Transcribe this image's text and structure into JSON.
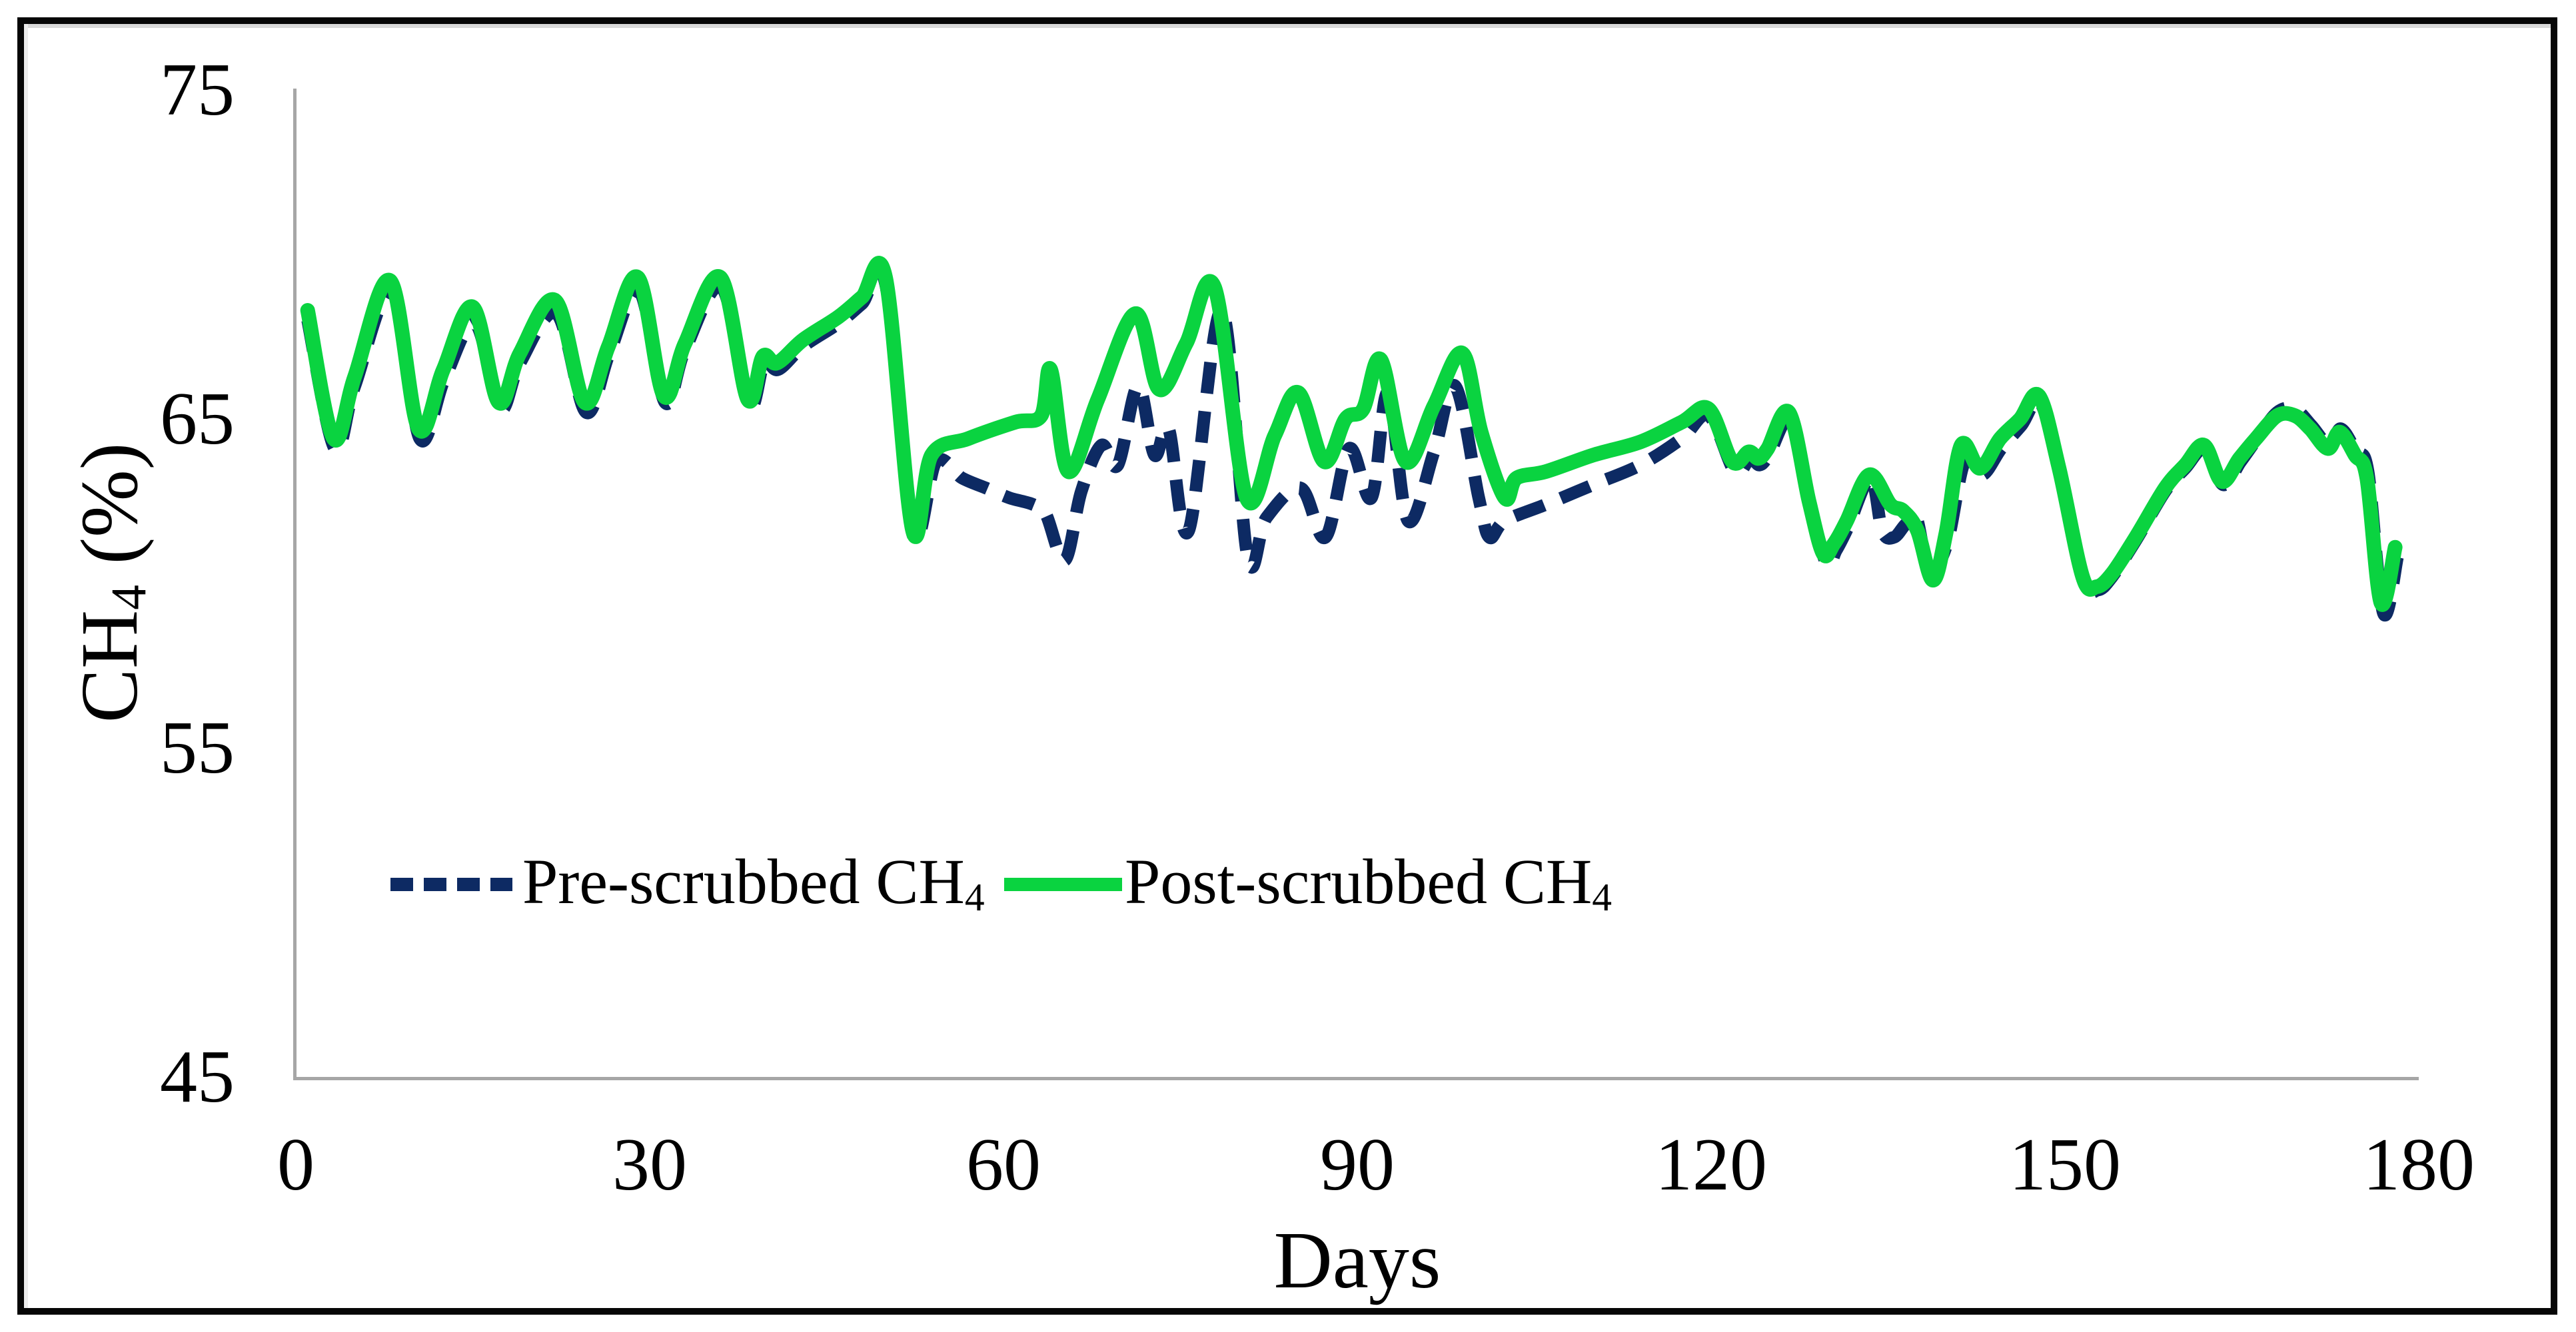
{
  "figure": {
    "background": "#ffffff",
    "border_color": "#060606",
    "axis_line_color": "#a6a6a6"
  },
  "chart_data": {
    "type": "line",
    "title": "",
    "xlabel": "Days",
    "ylabel": "CH4 (%)",
    "ylabel_parts": {
      "main": "CH",
      "sub": "4",
      "rest": " (%)"
    },
    "xlim": [
      0,
      180
    ],
    "ylim": [
      45,
      75
    ],
    "x_ticks": [
      0,
      30,
      60,
      90,
      120,
      150,
      180
    ],
    "y_ticks": [
      75,
      65,
      55,
      45
    ],
    "grid": false,
    "legend_position": "middle-left",
    "series": [
      {
        "name": "Pre-scrubbed CH4",
        "label_main": "Pre-scrubbed CH",
        "label_sub": "4",
        "color": "#0d2a63",
        "style": "dashed",
        "points": [
          [
            1,
            68.0
          ],
          [
            3.3,
            64.1
          ],
          [
            5,
            66.0
          ],
          [
            8.2,
            68.9
          ],
          [
            10.5,
            64.4
          ],
          [
            12.6,
            66.2
          ],
          [
            15.2,
            67.9
          ],
          [
            17.3,
            65.3
          ],
          [
            19,
            66.7
          ],
          [
            22.1,
            68.2
          ],
          [
            24.6,
            65.2
          ],
          [
            26.6,
            67.0
          ],
          [
            29.1,
            68.9
          ],
          [
            31.3,
            65.5
          ],
          [
            33,
            67.1
          ],
          [
            36.1,
            69.0
          ],
          [
            38.4,
            65.4
          ],
          [
            39.7,
            66.7
          ],
          [
            40.9,
            66.5
          ],
          [
            43,
            67.2
          ],
          [
            46,
            67.9
          ],
          [
            48,
            68.5
          ],
          [
            50,
            69.1
          ],
          [
            52.3,
            61.5
          ],
          [
            54.3,
            63.7
          ],
          [
            56.5,
            63.2
          ],
          [
            58.5,
            62.9
          ],
          [
            60.5,
            62.6
          ],
          [
            62.5,
            62.4
          ],
          [
            63.6,
            62.1
          ],
          [
            65.2,
            60.7
          ],
          [
            66.6,
            62.8
          ],
          [
            68.3,
            64.2
          ],
          [
            69.7,
            63.6
          ],
          [
            71.4,
            66.0
          ],
          [
            72.8,
            63.9
          ],
          [
            74,
            64.7
          ],
          [
            75.7,
            61.6
          ],
          [
            78.5,
            68.3
          ],
          [
            80.7,
            60.8
          ],
          [
            82.3,
            62.0
          ],
          [
            85.2,
            62.9
          ],
          [
            87.3,
            61.4
          ],
          [
            89.3,
            64.1
          ],
          [
            91.2,
            62.6
          ],
          [
            92.6,
            65.8
          ],
          [
            94.3,
            61.9
          ],
          [
            96.5,
            64.0
          ],
          [
            98.3,
            66.0
          ],
          [
            100.3,
            62.6
          ],
          [
            101.2,
            61.4
          ],
          [
            102.5,
            61.9
          ],
          [
            106,
            62.4
          ],
          [
            110,
            63.0
          ],
          [
            114,
            63.6
          ],
          [
            117.5,
            64.4
          ],
          [
            119.8,
            65.1
          ],
          [
            122.0,
            63.4
          ],
          [
            123.3,
            63.8
          ],
          [
            124.1,
            63.6
          ],
          [
            124.9,
            63.9
          ],
          [
            126.8,
            65.0
          ],
          [
            128.4,
            62.3
          ],
          [
            129.8,
            60.6
          ],
          [
            130.6,
            61.0
          ],
          [
            131.6,
            61.7
          ],
          [
            133.5,
            63.2
          ],
          [
            134.5,
            61.6
          ],
          [
            135.5,
            61.4
          ],
          [
            136.5,
            61.8
          ],
          [
            137.4,
            62.0
          ],
          [
            138.5,
            60.4
          ],
          [
            140,
            61.2
          ],
          [
            141.5,
            63.7
          ],
          [
            143,
            63.3
          ],
          [
            144.6,
            64.1
          ],
          [
            146.3,
            64.8
          ],
          [
            147.9,
            65.5
          ],
          [
            149.6,
            63.3
          ],
          [
            151.6,
            60.1
          ],
          [
            152.8,
            59.8
          ],
          [
            154,
            60.2
          ],
          [
            156,
            61.3
          ],
          [
            158.5,
            62.8
          ],
          [
            160.2,
            63.5
          ],
          [
            161.9,
            64.1
          ],
          [
            163.4,
            63.0
          ],
          [
            164.9,
            63.7
          ],
          [
            166.3,
            64.4
          ],
          [
            168,
            65.2
          ],
          [
            169.5,
            65.3
          ],
          [
            170.9,
            64.8
          ],
          [
            172.4,
            64.2
          ],
          [
            173.4,
            64.7
          ],
          [
            174.7,
            64.0
          ],
          [
            175.7,
            63.4
          ],
          [
            177,
            59.1
          ],
          [
            178.2,
            60.8
          ]
        ]
      },
      {
        "name": "Post-scrubbed CH4",
        "label_main": "Post-scrubbed CH",
        "label_sub": "4",
        "color": "#0ad340",
        "style": "solid",
        "points": [
          [
            1,
            68.3
          ],
          [
            3.2,
            64.4
          ],
          [
            5,
            66.3
          ],
          [
            8,
            69.2
          ],
          [
            10.4,
            64.7
          ],
          [
            12.5,
            66.5
          ],
          [
            15,
            68.4
          ],
          [
            17.2,
            65.5
          ],
          [
            19,
            67.0
          ],
          [
            22,
            68.6
          ],
          [
            24.5,
            65.5
          ],
          [
            26.5,
            67.2
          ],
          [
            29,
            69.3
          ],
          [
            31.2,
            65.7
          ],
          [
            33,
            67.3
          ],
          [
            36,
            69.3
          ],
          [
            38.3,
            65.6
          ],
          [
            39.6,
            66.9
          ],
          [
            40.8,
            66.7
          ],
          [
            43,
            67.4
          ],
          [
            46,
            68.1
          ],
          [
            48,
            68.7
          ],
          [
            50,
            69.3
          ],
          [
            52.3,
            61.6
          ],
          [
            53.9,
            63.9
          ],
          [
            57,
            64.4
          ],
          [
            61,
            64.9
          ],
          [
            63.2,
            65.1
          ],
          [
            64,
            66.5
          ],
          [
            65.5,
            63.4
          ],
          [
            68,
            65.6
          ],
          [
            71.2,
            68.2
          ],
          [
            73.2,
            65.9
          ],
          [
            75.5,
            67.3
          ],
          [
            77.9,
            69.0
          ],
          [
            80.6,
            62.6
          ],
          [
            83,
            64.5
          ],
          [
            85,
            65.8
          ],
          [
            87.2,
            63.7
          ],
          [
            89,
            65.0
          ],
          [
            90.5,
            65.3
          ],
          [
            92,
            66.8
          ],
          [
            94.1,
            63.7
          ],
          [
            96.5,
            65.4
          ],
          [
            98.9,
            67.0
          ],
          [
            100.5,
            64.6
          ],
          [
            102.5,
            62.6
          ],
          [
            103.5,
            63.2
          ],
          [
            106,
            63.4
          ],
          [
            110,
            63.9
          ],
          [
            114,
            64.3
          ],
          [
            117.5,
            64.9
          ],
          [
            119.8,
            65.3
          ],
          [
            121.8,
            63.7
          ],
          [
            123.2,
            64.0
          ],
          [
            124.0,
            63.8
          ],
          [
            124.8,
            64.1
          ],
          [
            126.6,
            65.2
          ],
          [
            128.3,
            62.5
          ],
          [
            129.5,
            60.9
          ],
          [
            130.4,
            61.2
          ],
          [
            131.5,
            61.9
          ],
          [
            133.4,
            63.3
          ],
          [
            135.2,
            62.4
          ],
          [
            136.3,
            62.2
          ],
          [
            137.5,
            61.6
          ],
          [
            138.8,
            60.1
          ],
          [
            139.9,
            61.5
          ],
          [
            141.2,
            64.2
          ],
          [
            142.8,
            63.5
          ],
          [
            144.5,
            64.4
          ],
          [
            146.2,
            65.0
          ],
          [
            147.8,
            65.7
          ],
          [
            149.5,
            63.5
          ],
          [
            151.5,
            60.2
          ],
          [
            152.7,
            59.9
          ],
          [
            154,
            60.3
          ],
          [
            156,
            61.4
          ],
          [
            158.5,
            62.9
          ],
          [
            160.2,
            63.6
          ],
          [
            161.8,
            64.2
          ],
          [
            163.3,
            63.1
          ],
          [
            164.8,
            63.8
          ],
          [
            166.2,
            64.4
          ],
          [
            168,
            65.1
          ],
          [
            169.5,
            65.1
          ],
          [
            170.8,
            64.7
          ],
          [
            172.3,
            64.1
          ],
          [
            173.3,
            64.6
          ],
          [
            174.6,
            63.9
          ],
          [
            175.6,
            63.2
          ],
          [
            176.8,
            59.4
          ],
          [
            178,
            61.1
          ]
        ]
      }
    ]
  }
}
